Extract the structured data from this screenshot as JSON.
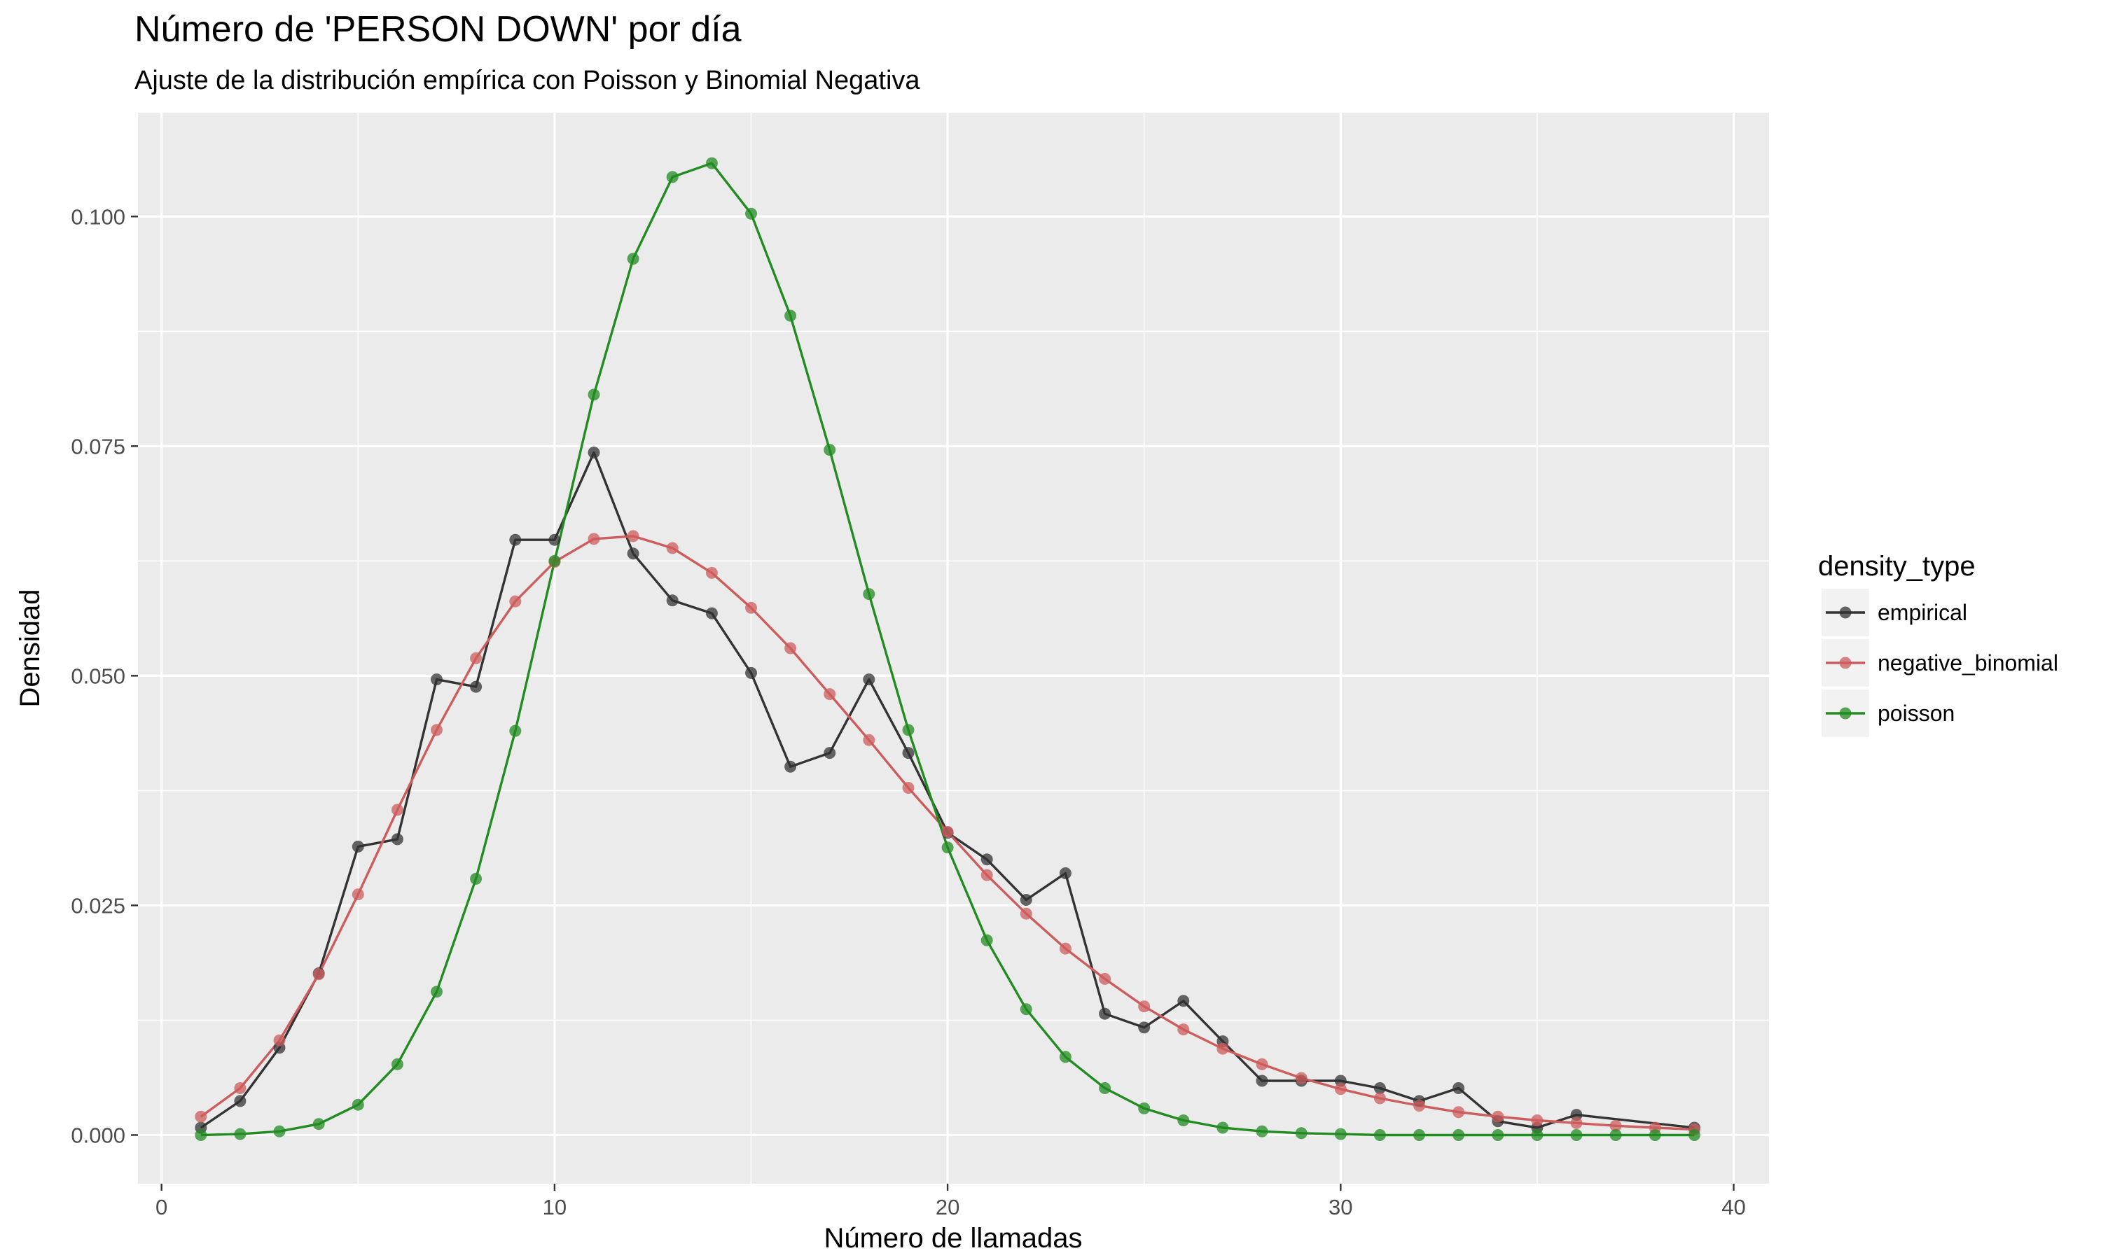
{
  "chart_data": {
    "type": "line",
    "title": "Número de 'PERSON DOWN' por día",
    "subtitle": "Ajuste de la distribución empírica con Poisson y Binomial Negativa",
    "xlabel": "Número de llamadas",
    "ylabel": "Densidad",
    "xlim": [
      -0.6,
      40.9
    ],
    "ylim": [
      -0.0053,
      0.1113
    ],
    "x_ticks": [
      0,
      10,
      20,
      30,
      40
    ],
    "x_tick_labels": [
      "0",
      "10",
      "20",
      "30",
      "40"
    ],
    "y_ticks": [
      0,
      0.025,
      0.05,
      0.075,
      0.1
    ],
    "y_tick_labels": [
      "0.000",
      "0.025",
      "0.050",
      "0.075",
      "0.100"
    ],
    "grid": true,
    "legend_title": "density_type",
    "legend_position": "right",
    "series": [
      {
        "name": "empirical",
        "color": "#333333",
        "x": [
          1,
          2,
          3,
          4,
          5,
          6,
          7,
          8,
          9,
          10,
          11,
          12,
          13,
          14,
          15,
          16,
          17,
          18,
          19,
          20,
          21,
          22,
          23,
          24,
          25,
          26,
          27,
          28,
          29,
          30,
          31,
          32,
          33,
          34,
          35,
          36,
          39
        ],
        "values": [
          0.0008,
          0.0037,
          0.0095,
          0.0176,
          0.0314,
          0.0322,
          0.0496,
          0.0488,
          0.0648,
          0.0648,
          0.0743,
          0.0633,
          0.0582,
          0.0568,
          0.0503,
          0.0401,
          0.0416,
          0.0496,
          0.0416,
          0.0329,
          0.03,
          0.0256,
          0.0285,
          0.0132,
          0.0117,
          0.0146,
          0.0102,
          0.0059,
          0.0059,
          0.0059,
          0.0051,
          0.0037,
          0.0051,
          0.0015,
          0.0008,
          0.0022,
          0.0008
        ]
      },
      {
        "name": "negative_binomial",
        "color": "#cd5c5c",
        "x": [
          1,
          2,
          3,
          4,
          5,
          6,
          7,
          8,
          9,
          10,
          11,
          12,
          13,
          14,
          15,
          16,
          17,
          18,
          19,
          20,
          21,
          22,
          23,
          24,
          25,
          26,
          27,
          28,
          29,
          30,
          31,
          32,
          33,
          34,
          35,
          36,
          37,
          38,
          39
        ],
        "values": [
          0.002,
          0.0051,
          0.0103,
          0.0175,
          0.0262,
          0.0354,
          0.0441,
          0.0519,
          0.0581,
          0.0624,
          0.0649,
          0.0652,
          0.0639,
          0.0612,
          0.0574,
          0.053,
          0.048,
          0.043,
          0.0378,
          0.033,
          0.0283,
          0.0241,
          0.0203,
          0.017,
          0.014,
          0.0115,
          0.0094,
          0.0077,
          0.0062,
          0.005,
          0.004,
          0.0032,
          0.0025,
          0.002,
          0.0016,
          0.0013,
          0.001,
          0.0008,
          0.0006
        ]
      },
      {
        "name": "poisson",
        "color": "#228b22",
        "x": [
          1,
          2,
          3,
          4,
          5,
          6,
          7,
          8,
          9,
          10,
          11,
          12,
          13,
          14,
          15,
          16,
          17,
          18,
          19,
          20,
          21,
          22,
          23,
          24,
          25,
          26,
          27,
          28,
          29,
          30,
          31,
          32,
          33,
          34,
          35,
          36,
          37,
          38,
          39
        ],
        "values": [
          0.0,
          0.0001,
          0.0004,
          0.0012,
          0.0033,
          0.0077,
          0.0156,
          0.0279,
          0.044,
          0.0625,
          0.0806,
          0.0954,
          0.1043,
          0.1058,
          0.1003,
          0.0892,
          0.0746,
          0.0589,
          0.0441,
          0.0313,
          0.0212,
          0.0137,
          0.0085,
          0.0051,
          0.0029,
          0.0016,
          0.0008,
          0.0004,
          0.0002,
          0.0001,
          0.0,
          0.0,
          0.0,
          0.0,
          0.0,
          0.0,
          0.0,
          0.0,
          0.0
        ]
      }
    ]
  }
}
